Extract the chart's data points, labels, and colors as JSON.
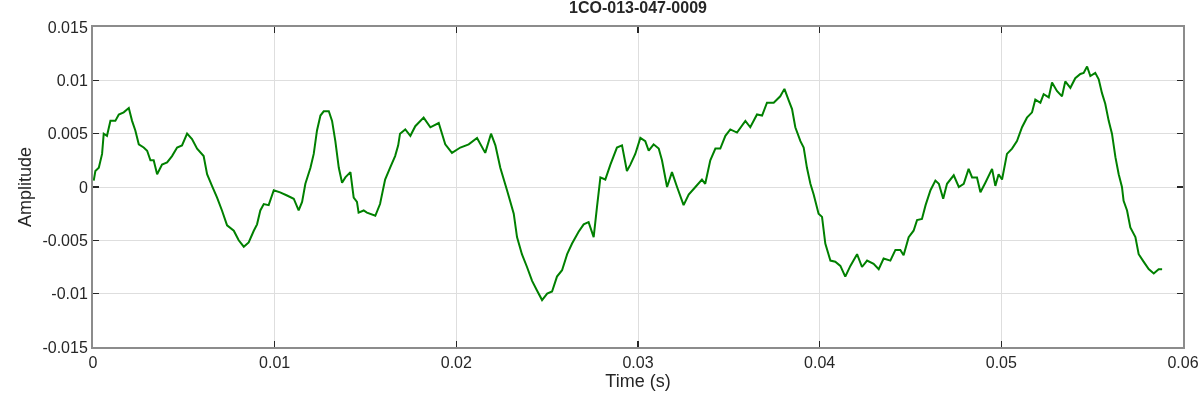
{
  "chart_data": {
    "type": "line",
    "title": "1CO-013-047-0009",
    "xlabel": "Time (s)",
    "ylabel": "Amplitude",
    "x": [
      4e-05,
      0.00013,
      0.00032,
      0.0005,
      0.00059,
      0.00077,
      0.00096,
      0.00123,
      0.00142,
      0.00169,
      0.00197,
      0.00215,
      0.00233,
      0.00252,
      0.00279,
      0.00298,
      0.00316,
      0.00334,
      0.00353,
      0.0038,
      0.00408,
      0.00435,
      0.00463,
      0.0049,
      0.00518,
      0.00545,
      0.00573,
      0.00609,
      0.00628,
      0.00655,
      0.00683,
      0.0071,
      0.00738,
      0.00775,
      0.00802,
      0.0083,
      0.00857,
      0.00885,
      0.00903,
      0.00921,
      0.0094,
      0.00967,
      0.00995,
      0.0103,
      0.01068,
      0.01105,
      0.01132,
      0.01151,
      0.01169,
      0.01197,
      0.01215,
      0.01233,
      0.01252,
      0.0127,
      0.01298,
      0.01316,
      0.01334,
      0.01353,
      0.01371,
      0.01389,
      0.01417,
      0.01435,
      0.01453,
      0.01462,
      0.0149,
      0.01508,
      0.01554,
      0.0158,
      0.01608,
      0.01635,
      0.01663,
      0.0168,
      0.0169,
      0.01719,
      0.01747,
      0.01774,
      0.0182,
      0.01857,
      0.01903,
      0.01939,
      0.01976,
      0.02022,
      0.02068,
      0.02114,
      0.02159,
      0.02191,
      0.02215,
      0.02242,
      0.02279,
      0.02316,
      0.02334,
      0.02361,
      0.02389,
      0.02417,
      0.02444,
      0.02472,
      0.025,
      0.02527,
      0.02554,
      0.02582,
      0.0261,
      0.02637,
      0.02673,
      0.02701,
      0.02728,
      0.02756,
      0.02774,
      0.02793,
      0.0282,
      0.02848,
      0.02884,
      0.02912,
      0.02939,
      0.02958,
      0.02985,
      0.03013,
      0.0304,
      0.03059,
      0.03086,
      0.03114,
      0.03132,
      0.0316,
      0.03187,
      0.03215,
      0.03251,
      0.03279,
      0.03316,
      0.03352,
      0.0337,
      0.03398,
      0.03426,
      0.03453,
      0.03481,
      0.03508,
      0.03545,
      0.03591,
      0.03618,
      0.03655,
      0.03683,
      0.0371,
      0.03747,
      0.03783,
      0.03806,
      0.0383,
      0.03848,
      0.03866,
      0.03894,
      0.03912,
      0.0393,
      0.03949,
      0.03967,
      0.03994,
      0.04013,
      0.04031,
      0.04059,
      0.04086,
      0.04114,
      0.04141,
      0.04169,
      0.04206,
      0.04233,
      0.04261,
      0.04297,
      0.04325,
      0.04352,
      0.04389,
      0.04417,
      0.04444,
      0.04462,
      0.0449,
      0.04517,
      0.04536,
      0.04563,
      0.04583,
      0.0461,
      0.04637,
      0.04656,
      0.0468,
      0.04701,
      0.04738,
      0.04766,
      0.04793,
      0.0482,
      0.04839,
      0.04866,
      0.04885,
      0.04912,
      0.04949,
      0.04967,
      0.04985,
      0.05004,
      0.05031,
      0.05059,
      0.05086,
      0.05114,
      0.05141,
      0.05169,
      0.05187,
      0.05215,
      0.05233,
      0.05261,
      0.05279,
      0.05306,
      0.05334,
      0.05352,
      0.0538,
      0.05407,
      0.05435,
      0.05453,
      0.05472,
      0.0549,
      0.05517,
      0.05536,
      0.05554,
      0.05572,
      0.05591,
      0.05609,
      0.05628,
      0.05646,
      0.05664,
      0.05673,
      0.05692,
      0.0571,
      0.05738,
      0.05756,
      0.05783,
      0.05811,
      0.05839,
      0.05866,
      0.05885
    ],
    "series": [
      {
        "color": "#008000",
        "values": [
          0.0006,
          0.0015,
          0.0018,
          0.0031,
          0.005,
          0.0048,
          0.0062,
          0.0062,
          0.0068,
          0.007,
          0.0074,
          0.0062,
          0.0053,
          0.004,
          0.0037,
          0.0034,
          0.0025,
          0.0025,
          0.0012,
          0.0021,
          0.0023,
          0.0029,
          0.0037,
          0.0039,
          0.005,
          0.0045,
          0.0036,
          0.0029,
          0.0012,
          0.0001,
          -0.001,
          -0.0022,
          -0.0036,
          -0.0041,
          -0.005,
          -0.0056,
          -0.0052,
          -0.0041,
          -0.0035,
          -0.0022,
          -0.0016,
          -0.0017,
          -0.0003,
          -0.0005,
          -0.0008,
          -0.0011,
          -0.0022,
          -0.0014,
          0.0003,
          0.0018,
          0.0031,
          0.0053,
          0.0067,
          0.0071,
          0.0071,
          0.0062,
          0.0043,
          0.0018,
          0.0004,
          0.0009,
          0.0014,
          -0.001,
          -0.0014,
          -0.0024,
          -0.0022,
          -0.0024,
          -0.0027,
          -0.0016,
          0.0007,
          0.0018,
          0.0029,
          0.0039,
          0.005,
          0.0054,
          0.0048,
          0.0057,
          0.0065,
          0.0056,
          0.006,
          0.004,
          0.0032,
          0.0037,
          0.004,
          0.0046,
          0.0032,
          0.005,
          0.0039,
          0.0018,
          -0.0003,
          -0.0025,
          -0.0047,
          -0.0063,
          -0.0075,
          -0.0088,
          -0.0097,
          -0.0106,
          -0.01,
          -0.0098,
          -0.0084,
          -0.0078,
          -0.0063,
          -0.0053,
          -0.0042,
          -0.0035,
          -0.0033,
          -0.0047,
          -0.0019,
          0.0009,
          0.0007,
          0.0021,
          0.0037,
          0.0039,
          0.0015,
          0.0021,
          0.0031,
          0.0046,
          0.0043,
          0.0034,
          0.004,
          0.0036,
          0.0025,
          0,
          0.0014,
          0,
          -0.0017,
          -0.0007,
          0,
          0.0007,
          0.0003,
          0.0025,
          0.0036,
          0.0036,
          0.0048,
          0.0054,
          0.0051,
          0.0062,
          0.0056,
          0.0068,
          0.0067,
          0.0079,
          0.0079,
          0.0085,
          0.0092,
          0.0081,
          0.0073,
          0.0056,
          0.0043,
          0.0037,
          0.0018,
          0.0003,
          -0.0007,
          -0.0025,
          -0.0028,
          -0.0053,
          -0.0069,
          -0.007,
          -0.0074,
          -0.0084,
          -0.0074,
          -0.0063,
          -0.0075,
          -0.0069,
          -0.0072,
          -0.0077,
          -0.0067,
          -0.0069,
          -0.0059,
          -0.0059,
          -0.0064,
          -0.0047,
          -0.0041,
          -0.0031,
          -0.003,
          -0.0017,
          -0.0003,
          0.0006,
          0.0003,
          -0.0011,
          0.0003,
          0.0011,
          0,
          0.0003,
          0.0017,
          0.0009,
          0.0009,
          -0.0005,
          0.0004,
          0.0017,
          0.0001,
          0.0012,
          0.0007,
          0.0031,
          0.0036,
          0.0043,
          0.0056,
          0.0065,
          0.007,
          0.0082,
          0.0079,
          0.0087,
          0.0084,
          0.0098,
          0.009,
          0.0085,
          0.0099,
          0.0093,
          0.0102,
          0.0106,
          0.0107,
          0.0113,
          0.0104,
          0.0107,
          0.0101,
          0.0088,
          0.0078,
          0.0062,
          0.005,
          0.0028,
          0.0012,
          0,
          -0.0013,
          -0.0022,
          -0.0038,
          -0.0047,
          -0.0063,
          -0.007,
          -0.0077,
          -0.0081,
          -0.0077,
          -0.0077
        ]
      }
    ],
    "xlim": [
      0,
      0.06
    ],
    "ylim": [
      -0.015,
      0.015
    ],
    "xticks": [
      0,
      0.01,
      0.02,
      0.03,
      0.04,
      0.05,
      0.06
    ],
    "yticks": [
      -0.015,
      -0.01,
      -0.005,
      0,
      0.005,
      0.01,
      0.015
    ],
    "grid": true,
    "line_style": "solid"
  }
}
